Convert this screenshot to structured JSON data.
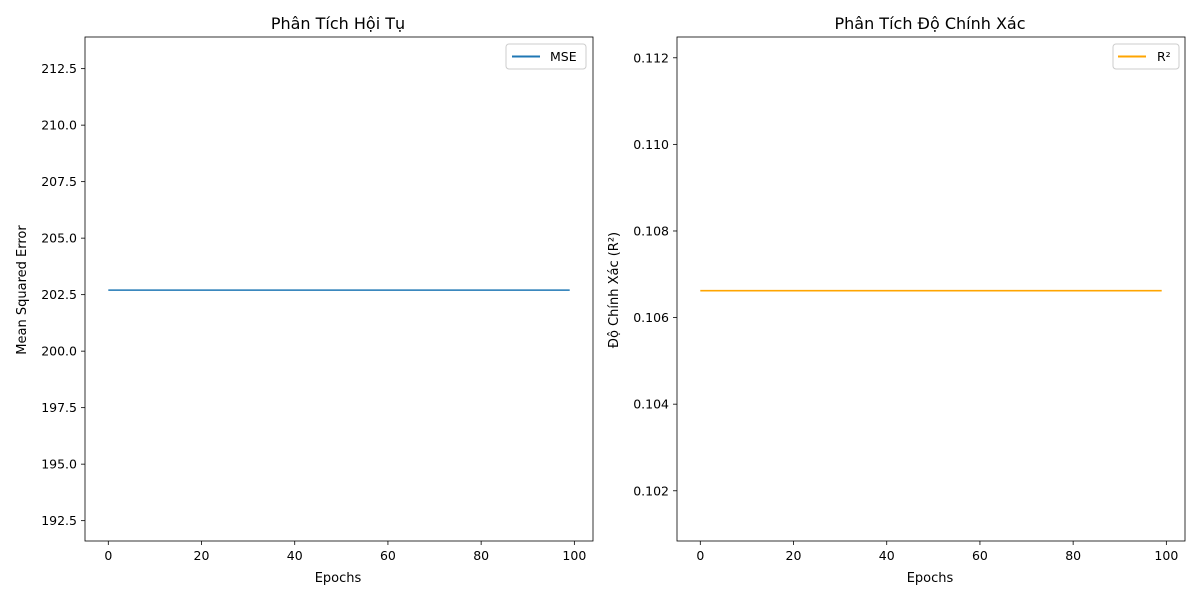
{
  "chart_data": [
    {
      "type": "line",
      "title": "Phân Tích Hội Tụ",
      "xlabel": "Epochs",
      "ylabel": "Mean Squared Error",
      "xlim": [
        -5,
        104
      ],
      "ylim": [
        191.6,
        213.9
      ],
      "xticks": [
        0,
        20,
        40,
        60,
        80,
        100
      ],
      "yticks": [
        192.5,
        195.0,
        197.5,
        200.0,
        202.5,
        205.0,
        207.5,
        210.0,
        212.5
      ],
      "ytick_decimals": 1,
      "legend_position": "top-right",
      "series": [
        {
          "name": "MSE",
          "color": "#1f77b4",
          "x": [
            0,
            99
          ],
          "y": [
            202.7,
            202.7
          ]
        }
      ]
    },
    {
      "type": "line",
      "title": "Phân Tích Độ Chính Xác",
      "xlabel": "Epochs",
      "ylabel": "Độ Chính Xác (R²)",
      "xlim": [
        -5,
        104
      ],
      "ylim": [
        0.10084,
        0.11248
      ],
      "xticks": [
        0,
        20,
        40,
        60,
        80,
        100
      ],
      "yticks": [
        0.102,
        0.104,
        0.106,
        0.108,
        0.11,
        0.112
      ],
      "ytick_decimals": 3,
      "legend_position": "top-right",
      "series": [
        {
          "name": "R²",
          "color": "#ffa500",
          "x": [
            0,
            99
          ],
          "y": [
            0.10662,
            0.10662
          ]
        }
      ]
    }
  ]
}
